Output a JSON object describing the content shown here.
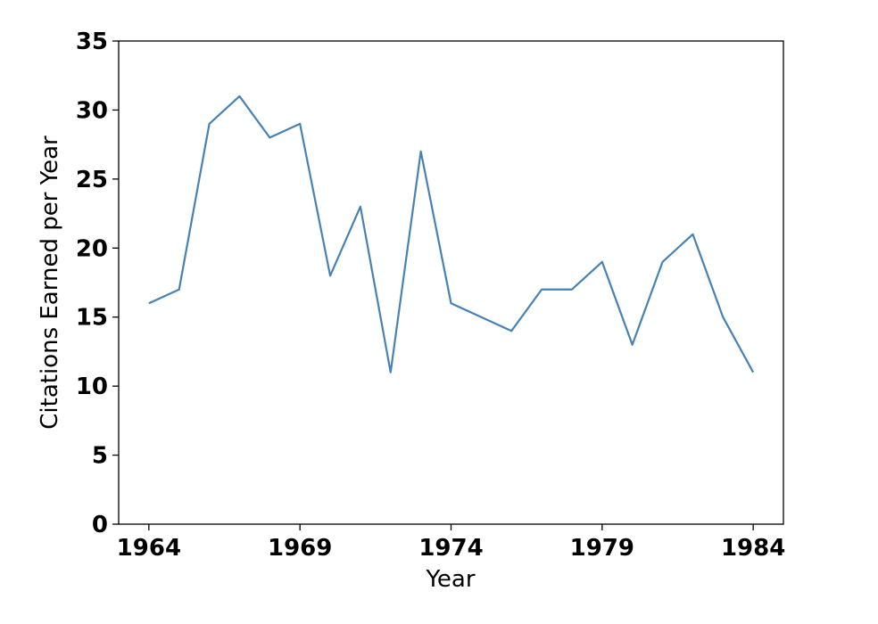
{
  "colors": {
    "line": "#4682b4",
    "axis": "#000000",
    "background": "#ffffff"
  },
  "chart_data": {
    "type": "line",
    "xlabel": "Year",
    "ylabel": "Citations Earned per Year",
    "xlim": [
      1963,
      1985
    ],
    "ylim": [
      0,
      35
    ],
    "grid": false,
    "x_ticks": [
      "1964",
      "1969",
      "1974",
      "1979",
      "1984"
    ],
    "y_ticks": [
      "0",
      "5",
      "10",
      "15",
      "20",
      "25",
      "30",
      "35"
    ],
    "series": [
      {
        "x": [
          1964,
          1965,
          1966,
          1967,
          1968,
          1969,
          1970,
          1971,
          1972,
          1973,
          1974,
          1975,
          1976,
          1977,
          1978,
          1979,
          1980,
          1981,
          1982,
          1983,
          1984
        ],
        "y": [
          16,
          17,
          29,
          31,
          28,
          29,
          18,
          23,
          11,
          27,
          16,
          15,
          14,
          17,
          17,
          19,
          13,
          19,
          21,
          15,
          11
        ]
      }
    ]
  }
}
